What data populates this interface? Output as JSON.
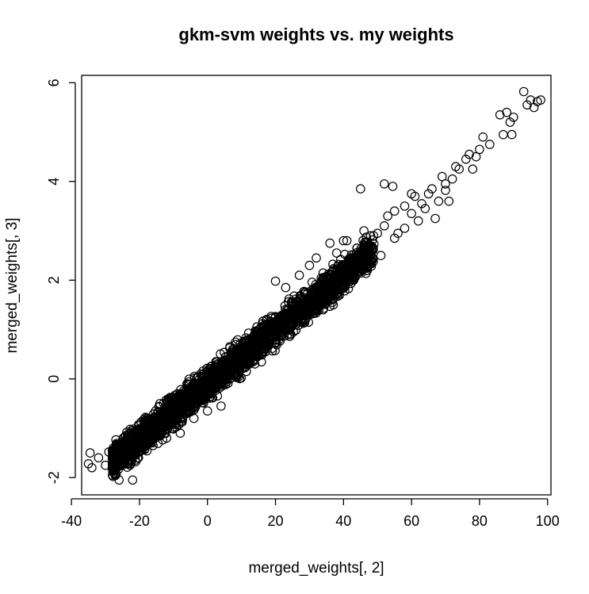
{
  "chart_data": {
    "type": "scatter",
    "title": "gkm-svm weights vs. my weights",
    "xlabel": "merged_weights[, 2]",
    "ylabel": "merged_weights[, 3]",
    "xlim": [
      -37,
      101
    ],
    "ylim": [
      -2.35,
      6.15
    ],
    "xticks": [
      -40,
      -20,
      0,
      20,
      40,
      60,
      80,
      100
    ],
    "yticks": [
      -2,
      0,
      2,
      4,
      6
    ],
    "grid": false,
    "marker": "open-circle",
    "colors": {
      "points": "#000000",
      "axes": "#000000",
      "background": "#ffffff"
    },
    "trend": {
      "slope": 0.0557,
      "intercept": -0.12
    },
    "dense_band": {
      "x_range": [
        -28,
        49
      ],
      "point_count": 2600
    },
    "points": [
      [
        -35,
        -1.72
      ],
      [
        -34.5,
        -1.5
      ],
      [
        -34,
        -1.8
      ],
      [
        -32,
        -1.6
      ],
      [
        -30,
        -1.75
      ],
      [
        -29,
        -1.48
      ],
      [
        -28,
        -1.62
      ],
      [
        -26,
        -2.05
      ],
      [
        -22,
        -2.05
      ],
      [
        -20,
        -1.48
      ],
      [
        -16,
        -1.35
      ],
      [
        -12,
        -1.2
      ],
      [
        -8,
        -1.1
      ],
      [
        -4,
        -0.8
      ],
      [
        0,
        -0.65
      ],
      [
        4,
        -0.55
      ],
      [
        -14,
        -0.5
      ],
      [
        -8,
        -0.3
      ],
      [
        -2,
        0.1
      ],
      [
        6,
        0.45
      ],
      [
        14,
        0.75
      ],
      [
        20,
        1.25
      ],
      [
        24,
        1.62
      ],
      [
        20,
        1.98
      ],
      [
        23,
        1.85
      ],
      [
        27,
        2.1
      ],
      [
        30,
        2.3
      ],
      [
        32,
        2.45
      ],
      [
        36,
        2.75
      ],
      [
        38,
        2.55
      ],
      [
        40,
        2.8
      ],
      [
        41,
        2.8
      ],
      [
        44,
        2.65
      ],
      [
        46,
        3.0
      ],
      [
        48,
        2.9
      ],
      [
        50,
        2.95
      ],
      [
        52,
        3.1
      ],
      [
        53,
        3.3
      ],
      [
        55,
        3.4
      ],
      [
        56,
        2.95
      ],
      [
        58,
        3.5
      ],
      [
        60,
        3.35
      ],
      [
        61,
        3.7
      ],
      [
        62,
        3.2
      ],
      [
        63,
        3.55
      ],
      [
        64,
        3.45
      ],
      [
        65,
        3.75
      ],
      [
        66,
        3.85
      ],
      [
        67,
        3.25
      ],
      [
        68,
        3.6
      ],
      [
        69,
        4.1
      ],
      [
        70,
        3.95
      ],
      [
        71,
        3.6
      ],
      [
        72,
        4.05
      ],
      [
        73,
        4.3
      ],
      [
        74,
        4.25
      ],
      [
        76,
        4.45
      ],
      [
        77,
        4.55
      ],
      [
        78,
        4.25
      ],
      [
        79,
        4.5
      ],
      [
        80,
        4.65
      ],
      [
        81,
        4.9
      ],
      [
        83,
        4.75
      ],
      [
        86,
        5.35
      ],
      [
        87,
        4.95
      ],
      [
        88,
        5.4
      ],
      [
        89,
        5.2
      ],
      [
        89.5,
        4.95
      ],
      [
        90,
        5.3
      ],
      [
        93,
        5.82
      ],
      [
        94,
        5.55
      ],
      [
        95,
        5.65
      ],
      [
        96,
        5.5
      ],
      [
        97,
        5.62
      ],
      [
        98,
        5.65
      ],
      [
        52,
        3.95
      ],
      [
        54.5,
        3.9
      ],
      [
        45,
        3.85
      ],
      [
        60,
        3.75
      ],
      [
        70,
        3.82
      ],
      [
        34,
        1.4
      ],
      [
        37,
        1.5
      ],
      [
        43,
        2.0
      ],
      [
        47,
        2.2
      ],
      [
        51,
        2.5
      ],
      [
        55,
        2.85
      ],
      [
        58,
        3.05
      ]
    ]
  }
}
